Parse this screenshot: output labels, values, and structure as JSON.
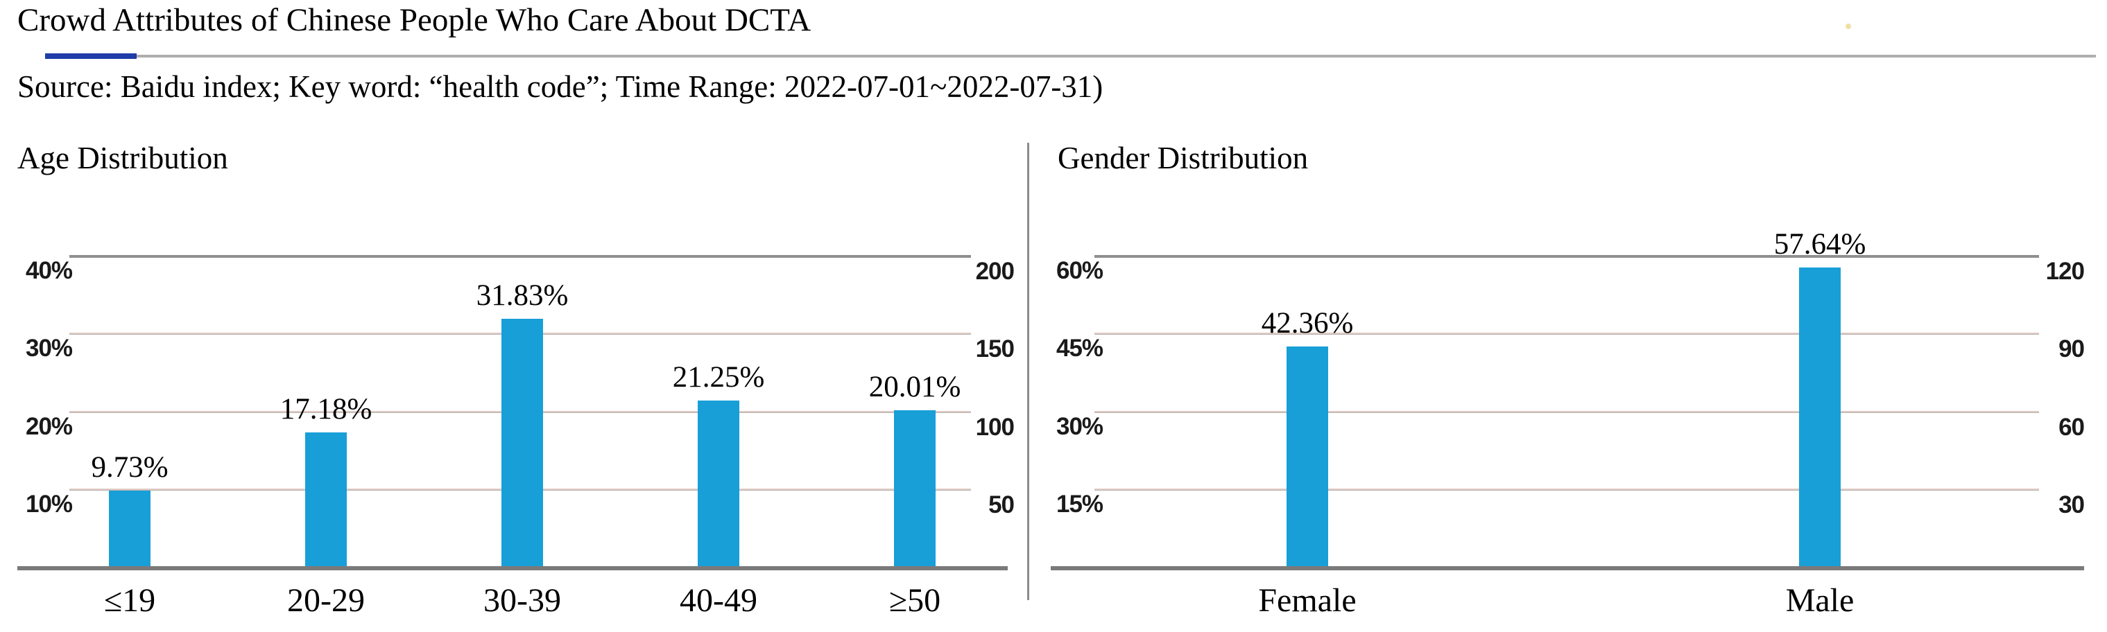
{
  "page": {
    "title": "Crowd Attributes of Chinese People Who Care About DCTA",
    "source_line": "Source: Baidu index; Key word: “health code”; Time Range: 2022-07-01~2022-07-31)"
  },
  "colors": {
    "bar": "#189fd8",
    "accent_underline": "#1f3ca8",
    "rule_gray": "#aeaeae",
    "divider_gray": "#8c8c8c",
    "baseline_gray": "#7a7a7a",
    "gridline_gray": "#b3b3b3",
    "gridline_top_gray": "#8f8f8f",
    "gridline_pink": "#f0d2c8",
    "dot_yellow": "#f0e0a4"
  },
  "chart_data": [
    {
      "type": "bar",
      "title": "Age Distribution",
      "categories": [
        "≤19",
        "20-29",
        "30-39",
        "40-49",
        "≥50"
      ],
      "values": [
        9.73,
        17.18,
        31.83,
        21.25,
        20.01
      ],
      "data_labels": [
        "9.73%",
        "17.18%",
        "31.83%",
        "21.25%",
        "20.01%"
      ],
      "left_axis_ticks": [
        "40%",
        "30%",
        "20%",
        "10%"
      ],
      "right_axis_ticks": [
        "200",
        "150",
        "100",
        "50"
      ],
      "left_axis_max_percent": 40,
      "right_axis_max": 200,
      "ylim_left_percent": [
        0,
        40
      ],
      "ylim_right": [
        0,
        200
      ],
      "grid": true,
      "legend": false
    },
    {
      "type": "bar",
      "title": "Gender Distribution",
      "categories": [
        "Female",
        "Male"
      ],
      "values": [
        42.36,
        57.64
      ],
      "data_labels": [
        "42.36%",
        "57.64%"
      ],
      "left_axis_ticks": [
        "60%",
        "45%",
        "30%",
        "15%"
      ],
      "right_axis_ticks": [
        "120",
        "90",
        "60",
        "30"
      ],
      "left_axis_max_percent": 60,
      "right_axis_max": 120,
      "ylim_left_percent": [
        0,
        60
      ],
      "ylim_right": [
        0,
        120
      ],
      "grid": true,
      "legend": false
    }
  ]
}
